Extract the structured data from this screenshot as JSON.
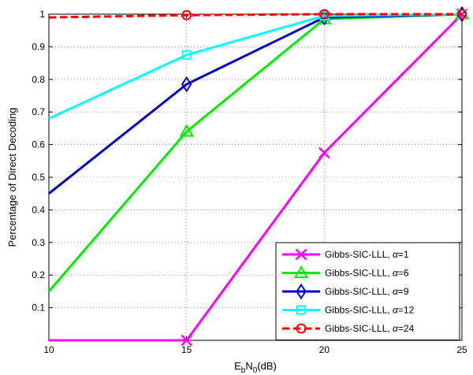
{
  "chart_data": {
    "type": "line",
    "title": "",
    "xlabel": "EbN0(dB)",
    "xlabel_parts": {
      "base": "E",
      "sub1": "b",
      "mid": "N",
      "sub2": "0",
      "unit": "(dB)"
    },
    "ylabel": "Percentage of Direct Decoding",
    "xlim": [
      10,
      25
    ],
    "ylim": [
      0,
      1
    ],
    "xticks": [
      10,
      15,
      20,
      25
    ],
    "yticks": [
      0.1,
      0.2,
      0.3,
      0.4,
      0.5,
      0.6,
      0.7,
      0.8,
      0.9,
      1
    ],
    "ytick_labels": [
      "0.1",
      "0.2",
      "0.3",
      "0.4",
      "0.5",
      "0.6",
      "0.7",
      "0.8",
      "0.9",
      "1"
    ],
    "grid": true,
    "legend_position": "bottom-right",
    "x": [
      10,
      15,
      20,
      25
    ],
    "series": [
      {
        "name": "Gibbs-SIC-LLL, α=1",
        "label_base": "Gibbs-SIC-LLL, ",
        "alpha": "1",
        "values": [
          0,
          0,
          0.575,
          1
        ],
        "color": "#ff00ff",
        "marker": "x",
        "dashed": false
      },
      {
        "name": "Gibbs-SIC-LLL, α=6",
        "label_base": "Gibbs-SIC-LLL, ",
        "alpha": "6",
        "values": [
          0.15,
          0.64,
          0.985,
          1
        ],
        "color": "#00ee00",
        "marker": "triangle",
        "dashed": false
      },
      {
        "name": "Gibbs-SIC-LLL, α=9",
        "label_base": "Gibbs-SIC-LLL, ",
        "alpha": "9",
        "values": [
          0.45,
          0.785,
          0.99,
          1
        ],
        "color": "#0000cc",
        "marker": "diamond",
        "dashed": false
      },
      {
        "name": "Gibbs-SIC-LLL, α=12",
        "label_base": "Gibbs-SIC-LLL, ",
        "alpha": "12",
        "values": [
          0.68,
          0.875,
          0.995,
          1
        ],
        "color": "#00ffff",
        "marker": "square",
        "dashed": false
      },
      {
        "name": "Gibbs-SIC-LLL, α=24",
        "label_base": "Gibbs-SIC-LLL, ",
        "alpha": "24",
        "values": [
          0.99,
          0.997,
          1,
          1
        ],
        "color": "#ff0000",
        "marker": "circle",
        "dashed": true
      }
    ]
  }
}
